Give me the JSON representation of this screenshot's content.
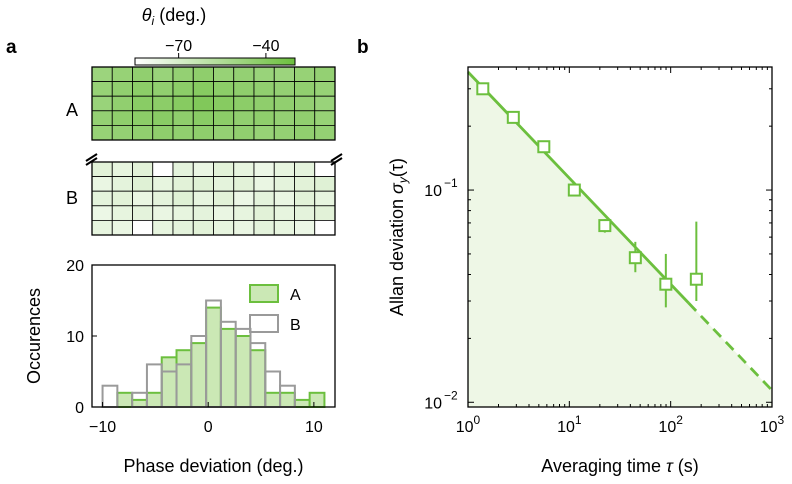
{
  "colors": {
    "accent": "#6cbf3e",
    "accent_light": "#cbe8b5",
    "shade": "#eef7e6",
    "gray": "#9a9a9a"
  },
  "panel_labels": {
    "a": "a",
    "b": "b"
  },
  "chart_data": [
    {
      "type": "heatmap",
      "colorbar": {
        "title_symbol": "θ",
        "title_sub": "i",
        "title_unit": "(deg.)",
        "ticks": [
          -70,
          -40
        ],
        "tick_labels": [
          "−70",
          "−40"
        ],
        "range": [
          -85,
          -30
        ]
      },
      "row_labels": [
        "A",
        "B"
      ],
      "rows": 5,
      "cols": 12,
      "A_values": [
        [
          -48,
          -46,
          -44,
          -47,
          -45,
          -43,
          -46,
          -45,
          -47,
          -48,
          -46,
          -45
        ],
        [
          -46,
          -44,
          -42,
          -44,
          -42,
          -40,
          -42,
          -43,
          -44,
          -45,
          -44,
          -46
        ],
        [
          -47,
          -44,
          -41,
          -42,
          -40,
          -38,
          -40,
          -42,
          -43,
          -44,
          -45,
          -47
        ],
        [
          -45,
          -43,
          -42,
          -41,
          -43,
          -41,
          -42,
          -44,
          -43,
          -45,
          -44,
          -46
        ],
        [
          -46,
          -45,
          -44,
          -43,
          -44,
          -43,
          -45,
          -44,
          -46,
          -45,
          -44,
          -45
        ]
      ],
      "B_values": [
        [
          -74,
          -76,
          -74,
          -85,
          -75,
          -77,
          -74,
          -76,
          -78,
          -76,
          -75,
          -85
        ],
        [
          -77,
          -75,
          -73,
          -76,
          -74,
          -73,
          -75,
          -74,
          -77,
          -75,
          -74,
          -73
        ],
        [
          -75,
          -74,
          -77,
          -75,
          -73,
          -76,
          -74,
          -78,
          -75,
          -77,
          -74,
          -76
        ],
        [
          -78,
          -76,
          -75,
          -77,
          -76,
          -75,
          -77,
          -76,
          -74,
          -76,
          -75,
          -74
        ],
        [
          -76,
          -77,
          -85,
          -76,
          -75,
          -74,
          -76,
          -77,
          -75,
          -76,
          -78,
          -85
        ]
      ]
    },
    {
      "type": "bar",
      "xlabel": "Phase deviation (deg.)",
      "ylabel": "Occurences",
      "xlim": [
        -11,
        12
      ],
      "ylim": [
        0,
        20
      ],
      "xticks": [
        -10,
        0,
        10
      ],
      "xtick_labels": [
        "−10",
        "0",
        "10"
      ],
      "yticks": [
        0,
        10,
        20
      ],
      "bin_edges": [
        -10,
        -8.6,
        -7.2,
        -5.8,
        -4.4,
        -3.0,
        -1.6,
        -0.2,
        1.2,
        2.6,
        4.0,
        5.4,
        6.8,
        8.2,
        9.6,
        11.0
      ],
      "series": [
        {
          "name": "A",
          "values": [
            0,
            2,
            1,
            2,
            7,
            8,
            9,
            14,
            11,
            10,
            8,
            2,
            2,
            1,
            2
          ]
        },
        {
          "name": "B",
          "values": [
            3,
            0,
            2,
            6,
            5,
            6,
            10,
            15,
            12,
            11,
            9,
            5,
            3,
            0,
            0
          ]
        }
      ],
      "legend": "top-right"
    },
    {
      "type": "scatter",
      "xlabel_text": "Averaging time",
      "xlabel_symbol": "τ",
      "xlabel_unit": "(s)",
      "ylabel_text": "Allan deviation",
      "ylabel_symbol": "σ",
      "ylabel_sub": "y",
      "ylabel_arg": "(τ)",
      "x_scale": "log",
      "y_scale": "log",
      "xlim": [
        1,
        1000
      ],
      "ylim": [
        0.0095,
        0.38
      ],
      "x": [
        1.4,
        2.8,
        5.6,
        11.2,
        22.4,
        44.8,
        89.6,
        179.2
      ],
      "y": [
        0.3,
        0.22,
        0.16,
        0.1,
        0.068,
        0.048,
        0.036,
        0.038
      ],
      "err_low": [
        0.004,
        0.004,
        0.004,
        0.004,
        0.005,
        0.007,
        0.008,
        0.008
      ],
      "err_high": [
        0.004,
        0.004,
        0.004,
        0.004,
        0.005,
        0.009,
        0.014,
        0.033
      ],
      "fit": {
        "coef": 0.36,
        "exponent": -0.5,
        "solid_to": 150,
        "dashed_to": 1000
      },
      "xtick_base": "10",
      "xtick_exps": [
        "0",
        "1",
        "2",
        "3"
      ],
      "ytick_base": "10",
      "ytick_exps": [
        "−2",
        "−1"
      ],
      "ytick_values": [
        0.01,
        0.1
      ]
    }
  ]
}
